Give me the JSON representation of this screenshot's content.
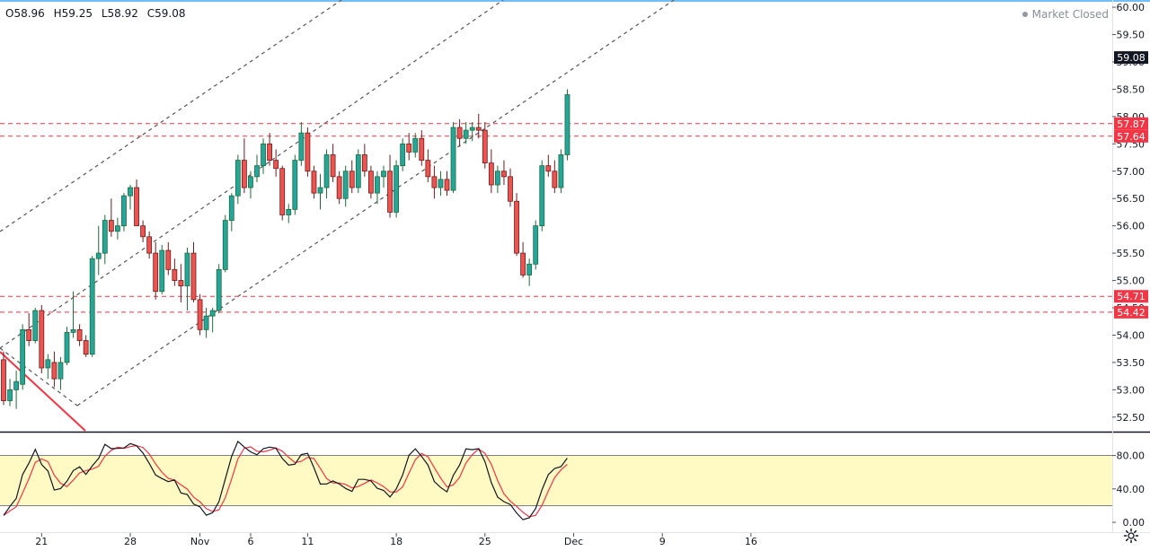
{
  "ohlc": {
    "open": "O58.96",
    "high": "H59.25",
    "low": "L58.92",
    "close": "C59.08"
  },
  "status": {
    "label": "Market Closed"
  },
  "colors": {
    "up": "#26a69a",
    "down": "#ef5350",
    "up_border": "#1e6b3a",
    "down_border": "#6b1d1d",
    "level_line": "#f23645",
    "trend_line": "#f23645",
    "channel": "#555555",
    "stoch_band": "#fff9c4",
    "stoch_k": "#131722",
    "stoch_d": "#f23645"
  },
  "price_axis": {
    "ticks": [
      "60.00",
      "59.50",
      "59.00",
      "58.50",
      "58.00",
      "57.50",
      "57.00",
      "56.50",
      "56.00",
      "55.50",
      "55.00",
      "54.50",
      "54.00",
      "53.50",
      "53.00",
      "52.50"
    ],
    "current": "59.08",
    "levels": [
      {
        "value": 57.87,
        "label": "57.87"
      },
      {
        "value": 57.64,
        "label": "57.64"
      },
      {
        "value": 54.71,
        "label": "54.71"
      },
      {
        "value": 54.42,
        "label": "54.42"
      }
    ]
  },
  "stoch_axis": {
    "ticks": [
      "80.00",
      "40.00",
      "0.00"
    ]
  },
  "time_axis": {
    "labels": [
      {
        "label": "21",
        "bar": 6
      },
      {
        "label": "28",
        "bar": 20
      },
      {
        "label": "Nov",
        "bar": 31
      },
      {
        "label": "6",
        "bar": 39
      },
      {
        "label": "11",
        "bar": 48
      },
      {
        "label": "18",
        "bar": 62
      },
      {
        "label": "25",
        "bar": 76
      },
      {
        "label": "Dec",
        "bar": 90
      },
      {
        "label": "9",
        "bar": 104
      },
      {
        "label": "16",
        "bar": 118
      }
    ]
  },
  "chart_data": {
    "type": "candlestick",
    "y_range": [
      52.25,
      60.1
    ],
    "bar_interval": "4h",
    "bars": [
      [
        53.55,
        53.7,
        52.72,
        52.8
      ],
      [
        52.8,
        53.2,
        52.7,
        53.0
      ],
      [
        53.0,
        53.35,
        52.65,
        53.15
      ],
      [
        53.1,
        54.2,
        53.0,
        54.1
      ],
      [
        54.1,
        54.4,
        53.8,
        53.9
      ],
      [
        53.9,
        54.5,
        53.85,
        54.45
      ],
      [
        54.45,
        54.55,
        53.3,
        53.4
      ],
      [
        53.4,
        53.65,
        53.2,
        53.55
      ],
      [
        53.5,
        53.7,
        53.05,
        53.2
      ],
      [
        53.2,
        53.6,
        53.0,
        53.5
      ],
      [
        53.5,
        54.15,
        53.45,
        54.05
      ],
      [
        54.05,
        54.8,
        53.95,
        54.1
      ],
      [
        54.1,
        54.2,
        53.8,
        53.9
      ],
      [
        53.9,
        54.0,
        53.6,
        53.65
      ],
      [
        53.65,
        55.45,
        53.6,
        55.4
      ],
      [
        55.4,
        56.0,
        55.1,
        55.5
      ],
      [
        55.5,
        56.2,
        55.3,
        56.1
      ],
      [
        56.1,
        56.5,
        55.8,
        55.9
      ],
      [
        55.9,
        56.15,
        55.75,
        56.0
      ],
      [
        56.0,
        56.6,
        55.9,
        56.55
      ],
      [
        56.55,
        56.75,
        56.3,
        56.7
      ],
      [
        56.7,
        56.85,
        56.3,
        56.0
      ],
      [
        56.0,
        56.1,
        55.7,
        55.8
      ],
      [
        55.8,
        55.9,
        55.4,
        55.5
      ],
      [
        55.5,
        55.7,
        54.65,
        54.8
      ],
      [
        54.8,
        55.65,
        54.75,
        55.55
      ],
      [
        55.55,
        55.7,
        55.1,
        55.2
      ],
      [
        55.2,
        55.4,
        54.9,
        55.0
      ],
      [
        55.0,
        55.3,
        54.6,
        54.9
      ],
      [
        54.9,
        55.6,
        54.45,
        55.5
      ],
      [
        55.5,
        55.7,
        54.6,
        54.65
      ],
      [
        54.65,
        54.75,
        54.0,
        54.1
      ],
      [
        54.1,
        54.5,
        53.95,
        54.35
      ],
      [
        54.35,
        54.5,
        54.05,
        54.45
      ],
      [
        54.45,
        55.3,
        54.4,
        55.2
      ],
      [
        55.2,
        56.2,
        55.15,
        56.1
      ],
      [
        56.1,
        56.6,
        55.9,
        56.55
      ],
      [
        56.55,
        57.3,
        56.4,
        57.2
      ],
      [
        57.2,
        57.6,
        56.6,
        56.7
      ],
      [
        56.7,
        57.0,
        56.5,
        56.9
      ],
      [
        56.9,
        57.3,
        56.8,
        57.1
      ],
      [
        57.1,
        57.6,
        56.95,
        57.5
      ],
      [
        57.5,
        57.7,
        57.1,
        57.2
      ],
      [
        57.2,
        57.4,
        56.9,
        57.05
      ],
      [
        57.05,
        57.1,
        56.1,
        56.2
      ],
      [
        56.2,
        56.4,
        56.05,
        56.3
      ],
      [
        56.3,
        57.3,
        56.2,
        57.2
      ],
      [
        57.2,
        57.9,
        57.1,
        57.7
      ],
      [
        57.7,
        57.8,
        56.9,
        57.0
      ],
      [
        57.0,
        57.1,
        56.5,
        56.6
      ],
      [
        56.6,
        56.95,
        56.3,
        56.7
      ],
      [
        56.7,
        57.4,
        56.5,
        57.3
      ],
      [
        57.3,
        57.5,
        56.8,
        56.9
      ],
      [
        56.9,
        57.0,
        56.4,
        56.5
      ],
      [
        56.5,
        57.1,
        56.35,
        57.0
      ],
      [
        57.0,
        57.2,
        56.6,
        56.7
      ],
      [
        56.7,
        57.4,
        56.6,
        57.3
      ],
      [
        57.3,
        57.5,
        56.9,
        57.0
      ],
      [
        57.0,
        57.1,
        56.5,
        56.6
      ],
      [
        56.6,
        57.0,
        56.4,
        56.9
      ],
      [
        56.9,
        57.1,
        56.7,
        57.0
      ],
      [
        57.0,
        57.3,
        56.15,
        56.25
      ],
      [
        56.25,
        57.2,
        56.15,
        57.1
      ],
      [
        57.1,
        57.6,
        57.0,
        57.5
      ],
      [
        57.5,
        57.7,
        57.2,
        57.35
      ],
      [
        57.35,
        57.7,
        57.25,
        57.6
      ],
      [
        57.6,
        57.75,
        57.1,
        57.2
      ],
      [
        57.2,
        57.4,
        56.8,
        56.9
      ],
      [
        56.9,
        57.1,
        56.5,
        56.7
      ],
      [
        56.7,
        57.0,
        56.55,
        56.85
      ],
      [
        56.85,
        57.0,
        56.55,
        56.65
      ],
      [
        56.65,
        57.9,
        56.6,
        57.8
      ],
      [
        57.8,
        57.95,
        57.45,
        57.6
      ],
      [
        57.6,
        57.9,
        57.5,
        57.75
      ],
      [
        57.75,
        57.9,
        57.55,
        57.8
      ],
      [
        57.8,
        58.05,
        57.6,
        57.75
      ],
      [
        57.75,
        57.9,
        57.05,
        57.15
      ],
      [
        57.15,
        57.4,
        56.6,
        56.75
      ],
      [
        56.75,
        57.1,
        56.6,
        57.0
      ],
      [
        57.0,
        57.2,
        56.75,
        56.9
      ],
      [
        56.9,
        57.05,
        56.35,
        56.45
      ],
      [
        56.45,
        56.6,
        55.45,
        55.5
      ],
      [
        55.5,
        55.7,
        55.05,
        55.1
      ],
      [
        55.1,
        55.4,
        54.9,
        55.3
      ],
      [
        55.3,
        56.1,
        55.2,
        56.0
      ],
      [
        56.0,
        57.2,
        55.9,
        57.1
      ],
      [
        57.1,
        57.3,
        56.9,
        57.0
      ],
      [
        57.0,
        57.2,
        56.6,
        56.7
      ],
      [
        56.7,
        57.4,
        56.6,
        57.3
      ],
      [
        57.3,
        58.5,
        57.2,
        58.4
      ]
    ]
  }
}
